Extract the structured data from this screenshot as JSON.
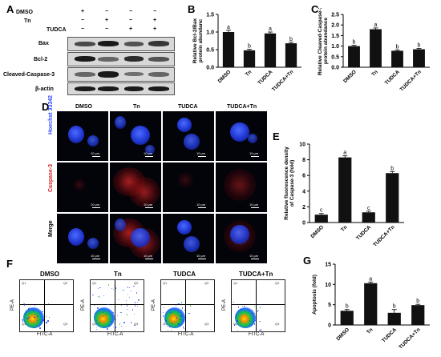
{
  "panels": {
    "A": "A",
    "B": "B",
    "C": "C",
    "D": "D",
    "E": "E",
    "F": "F",
    "G": "G"
  },
  "panel_a": {
    "conditions": [
      "DMSO",
      "Tn",
      "TUDCA"
    ],
    "signs": [
      [
        "+",
        "−",
        "−",
        "−"
      ],
      [
        "−",
        "+",
        "−",
        "+"
      ],
      [
        "−",
        "−",
        "+",
        "+"
      ]
    ],
    "proteins": [
      "Bax",
      "Bcl-2",
      "Cleaved-Caspase-3",
      "β-actin"
    ]
  },
  "panel_d": {
    "columns": [
      "DMSO",
      "Tn",
      "TUDCA",
      "TUDCA+Tn"
    ],
    "rows": [
      "Hoechst 33342",
      "Caspase-3",
      "Merge"
    ],
    "scale_label": "10 μm"
  },
  "panel_f": {
    "titles": [
      "DMSO",
      "Tn",
      "TUDCA",
      "TUDCA+Tn"
    ],
    "xlabel": "FITC-A",
    "ylabel": "PE-A",
    "quads": [
      [
        "Q1",
        "Q2",
        "Q4",
        "Q3"
      ],
      [
        "Q1",
        "Q2",
        "Q4",
        "Q3"
      ],
      [
        "Q1",
        "Q2",
        "Q4",
        "Q3"
      ],
      [
        "Q1",
        "Q2",
        "Q4",
        "Q3"
      ]
    ]
  },
  "colors": {
    "bar": "#111111",
    "hoechst": "#2f4bff",
    "caspase": "#d42020"
  },
  "chart_data": [
    {
      "id": "B",
      "type": "bar",
      "categories": [
        "DMSO",
        "Tn",
        "TUDCA",
        "TUDCA+Tn"
      ],
      "values": [
        1.0,
        0.48,
        0.96,
        0.68
      ],
      "errors": [
        0.05,
        0.03,
        0.04,
        0.03
      ],
      "letters": [
        "a",
        "b",
        "a",
        "b"
      ],
      "ylabel": "Relative Bcl-2/Bax protein abundanc",
      "ylim": [
        0,
        1.5
      ],
      "yticks": [
        0.0,
        0.5,
        1.0,
        1.5
      ]
    },
    {
      "id": "C",
      "type": "bar",
      "categories": [
        "DMSO",
        "Tn",
        "TUDCA",
        "TUDCA+Tn"
      ],
      "values": [
        1.0,
        1.8,
        0.78,
        0.85
      ],
      "errors": [
        0.04,
        0.06,
        0.04,
        0.04
      ],
      "letters": [
        "b",
        "a",
        "b",
        "b"
      ],
      "ylabel": "Relative Cleaved-Caspase-3 protein abundance",
      "ylim": [
        0,
        2.5
      ],
      "yticks": [
        0.0,
        0.5,
        1.0,
        1.5,
        2.0,
        2.5
      ]
    },
    {
      "id": "E",
      "type": "bar",
      "categories": [
        "DMSO",
        "Tn",
        "TUDCA",
        "TUDCA+Tn"
      ],
      "values": [
        1.0,
        8.3,
        1.3,
        6.3
      ],
      "errors": [
        0.15,
        0.2,
        0.15,
        0.2
      ],
      "letters": [
        "c",
        "a",
        "c",
        "b"
      ],
      "ylabel": "Relative fluorescence density of Caspase-3 (fold)",
      "ylim": [
        0,
        10
      ],
      "yticks": [
        0,
        2,
        4,
        6,
        8,
        10
      ]
    },
    {
      "id": "G",
      "type": "bar",
      "categories": [
        "DMSO",
        "Tn",
        "TUDCA",
        "TUDCA+Tn"
      ],
      "values": [
        3.5,
        10.3,
        3.0,
        4.9
      ],
      "errors": [
        0.3,
        0.3,
        0.8,
        0.2
      ],
      "letters": [
        "b",
        "a",
        "b",
        "b"
      ],
      "ylabel": "Apoptosis (fold)",
      "ylim": [
        0,
        15
      ],
      "yticks": [
        0,
        5,
        10,
        15
      ]
    }
  ]
}
